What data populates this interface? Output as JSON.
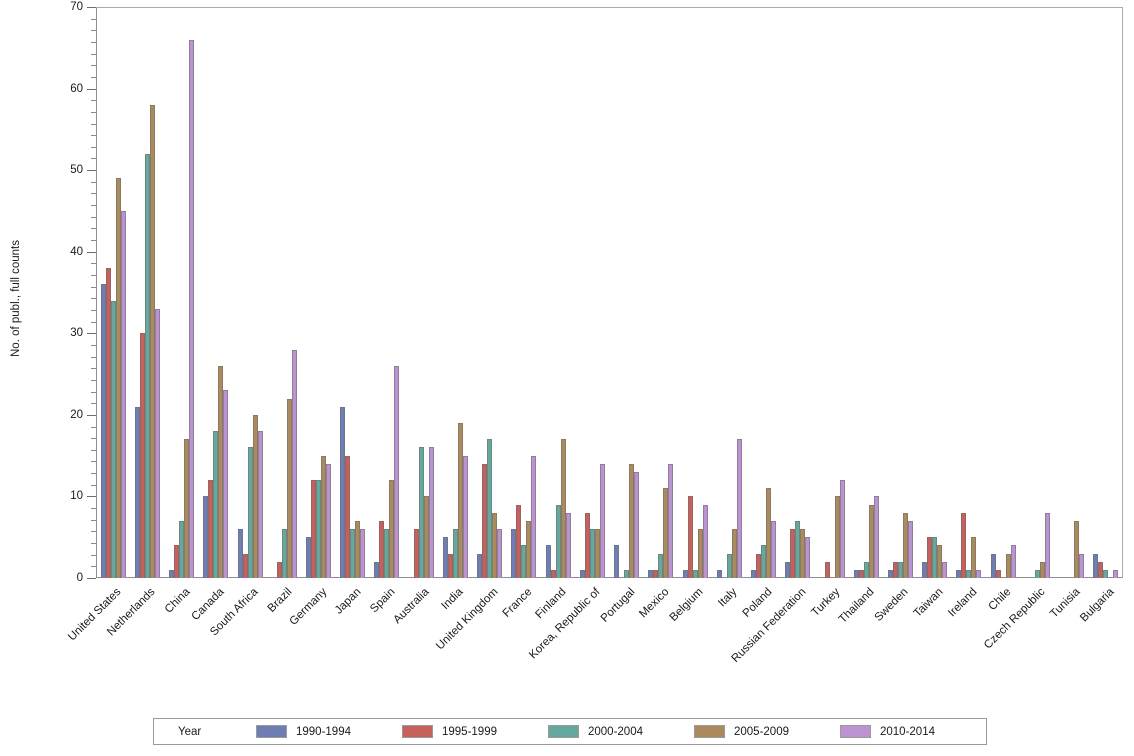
{
  "chart_data": {
    "type": "bar",
    "title": "",
    "xlabel": "",
    "ylabel": "No. of publ., full counts",
    "ylim": [
      0,
      70
    ],
    "y_major_step": 10,
    "y_minor_divisions_per_major": 7,
    "grid": false,
    "legend_position": "bottom",
    "legend_title": "Year",
    "categories": [
      "United States",
      "Netherlands",
      "China",
      "Canada",
      "South Africa",
      "Brazil",
      "Germany",
      "Japan",
      "Spain",
      "Australia",
      "India",
      "United Kingdom",
      "France",
      "Finland",
      "Korea, Republic of",
      "Portugal",
      "Mexico",
      "Belgium",
      "Italy",
      "Poland",
      "Russian Federation",
      "Turkey",
      "Thailand",
      "Sweden",
      "Taiwan",
      "Ireland",
      "Chile",
      "Czech Republic",
      "Tunisia",
      "Bulgaria"
    ],
    "series": [
      {
        "name": "1990-1994",
        "color": "#6f7eb2",
        "values": [
          36,
          21,
          1,
          10,
          6,
          0,
          5,
          21,
          2,
          0,
          5,
          3,
          6,
          4,
          1,
          4,
          1,
          1,
          1,
          1,
          2,
          0,
          1,
          1,
          2,
          1,
          3,
          0,
          0,
          3
        ]
      },
      {
        "name": "1995-1999",
        "color": "#c5605a",
        "values": [
          38,
          30,
          4,
          12,
          3,
          2,
          12,
          15,
          7,
          6,
          3,
          14,
          9,
          1,
          8,
          0,
          1,
          10,
          0,
          3,
          6,
          2,
          1,
          2,
          5,
          8,
          1,
          0,
          0,
          2
        ]
      },
      {
        "name": "2000-2004",
        "color": "#66a79e",
        "values": [
          34,
          52,
          7,
          18,
          16,
          6,
          12,
          6,
          6,
          16,
          6,
          17,
          4,
          9,
          6,
          1,
          3,
          1,
          3,
          4,
          7,
          0,
          2,
          2,
          5,
          1,
          0,
          1,
          0,
          1
        ]
      },
      {
        "name": "2005-2009",
        "color": "#ab8a5e",
        "values": [
          49,
          58,
          17,
          26,
          20,
          22,
          15,
          7,
          12,
          10,
          19,
          8,
          7,
          17,
          6,
          14,
          11,
          6,
          6,
          11,
          6,
          10,
          9,
          8,
          4,
          5,
          3,
          2,
          7,
          0
        ]
      },
      {
        "name": "2010-2014",
        "color": "#bb93d1",
        "values": [
          45,
          33,
          66,
          23,
          18,
          28,
          14,
          6,
          26,
          16,
          15,
          6,
          15,
          8,
          14,
          13,
          14,
          9,
          17,
          7,
          5,
          12,
          10,
          7,
          2,
          1,
          4,
          8,
          3,
          1
        ]
      }
    ],
    "y_tick_labels": [
      "0",
      "10",
      "20",
      "30",
      "40",
      "50",
      "60",
      "70"
    ]
  },
  "colors": {
    "frame": "#ababab",
    "axis": "#8f8f8f",
    "tick": "#6e6e6e",
    "text": "#1a1a1a",
    "background": "#ffffff"
  }
}
